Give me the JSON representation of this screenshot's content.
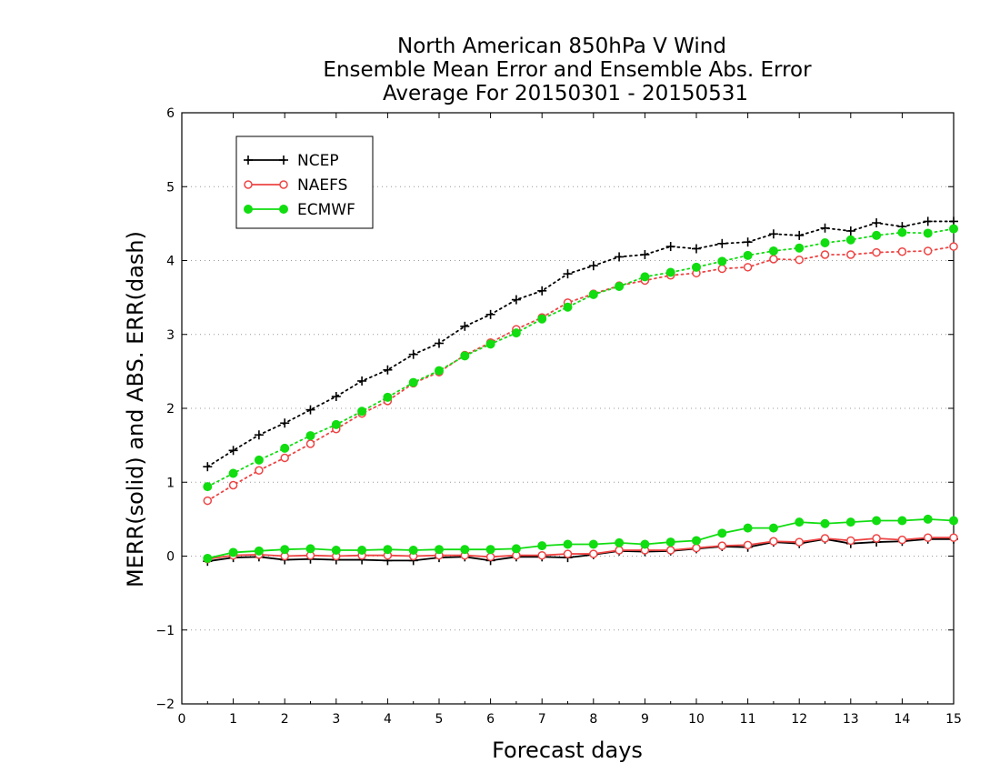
{
  "chart_data": {
    "type": "line",
    "title_lines": [
      "North American 850hPa V Wind",
      "Ensemble Mean Error and Ensemble Abs. Error",
      "Average For 20150301 - 20150531"
    ],
    "xlabel": "Forecast days",
    "ylabel": "MERR(solid) and ABS. ERR(dash)",
    "xlim": [
      0,
      15
    ],
    "ylim": [
      -2,
      6
    ],
    "xticks": [
      0,
      1,
      2,
      3,
      4,
      5,
      6,
      7,
      8,
      9,
      10,
      11,
      12,
      13,
      14,
      15
    ],
    "yticks": [
      -2,
      -1,
      0,
      1,
      2,
      3,
      4,
      5,
      6
    ],
    "ytick_labels": [
      "−2",
      "−1",
      "0",
      "1",
      "2",
      "3",
      "4",
      "5",
      "6"
    ],
    "grid": "horizontal dotted",
    "legend_position": "top-left",
    "x": [
      0.5,
      1.0,
      1.5,
      2.0,
      2.5,
      3.0,
      3.5,
      4.0,
      4.5,
      5.0,
      5.5,
      6.0,
      6.5,
      7.0,
      7.5,
      8.0,
      8.5,
      9.0,
      9.5,
      10.0,
      10.5,
      11.0,
      11.5,
      12.0,
      12.5,
      13.0,
      13.5,
      14.0,
      14.5,
      15.0
    ],
    "series": [
      {
        "name": "NCEP",
        "color": "#000000",
        "marker": "plus",
        "merr": [
          -0.07,
          -0.02,
          -0.01,
          -0.05,
          -0.04,
          -0.05,
          -0.05,
          -0.06,
          -0.06,
          -0.02,
          -0.01,
          -0.06,
          -0.01,
          -0.01,
          -0.02,
          0.02,
          0.07,
          0.06,
          0.07,
          0.1,
          0.13,
          0.12,
          0.19,
          0.17,
          0.23,
          0.17,
          0.19,
          0.2,
          0.23,
          0.23
        ],
        "abs_err": [
          1.21,
          1.43,
          1.64,
          1.8,
          1.98,
          2.16,
          2.37,
          2.52,
          2.73,
          2.88,
          3.11,
          3.27,
          3.47,
          3.59,
          3.82,
          3.93,
          4.05,
          4.08,
          4.19,
          4.16,
          4.23,
          4.25,
          4.36,
          4.34,
          4.44,
          4.4,
          4.51,
          4.46,
          4.53,
          4.53
        ]
      },
      {
        "name": "NAEFS",
        "color": "#ee4444",
        "marker": "open-circle",
        "merr": [
          -0.04,
          0.01,
          0.02,
          0.0,
          0.01,
          0.0,
          0.01,
          0.01,
          0.0,
          0.01,
          0.01,
          -0.01,
          0.01,
          0.01,
          0.03,
          0.03,
          0.08,
          0.08,
          0.08,
          0.11,
          0.14,
          0.15,
          0.2,
          0.19,
          0.24,
          0.21,
          0.24,
          0.22,
          0.25,
          0.25
        ],
        "abs_err": [
          0.75,
          0.96,
          1.16,
          1.33,
          1.52,
          1.72,
          1.93,
          2.1,
          2.34,
          2.49,
          2.72,
          2.89,
          3.07,
          3.23,
          3.43,
          3.55,
          3.66,
          3.73,
          3.8,
          3.83,
          3.89,
          3.91,
          4.02,
          4.01,
          4.08,
          4.08,
          4.11,
          4.12,
          4.13,
          4.19
        ]
      },
      {
        "name": "ECMWF",
        "color": "#11dd11",
        "marker": "filled-circle",
        "merr": [
          -0.03,
          0.05,
          0.07,
          0.09,
          0.1,
          0.08,
          0.08,
          0.09,
          0.08,
          0.09,
          0.09,
          0.09,
          0.1,
          0.14,
          0.16,
          0.16,
          0.18,
          0.16,
          0.19,
          0.21,
          0.31,
          0.38,
          0.38,
          0.46,
          0.44,
          0.46,
          0.48,
          0.48,
          0.5,
          0.48
        ],
        "abs_err": [
          0.94,
          1.12,
          1.3,
          1.46,
          1.63,
          1.78,
          1.96,
          2.15,
          2.35,
          2.51,
          2.71,
          2.87,
          3.02,
          3.21,
          3.37,
          3.54,
          3.65,
          3.78,
          3.84,
          3.91,
          3.99,
          4.07,
          4.13,
          4.17,
          4.24,
          4.28,
          4.34,
          4.38,
          4.37,
          4.43
        ]
      }
    ]
  }
}
